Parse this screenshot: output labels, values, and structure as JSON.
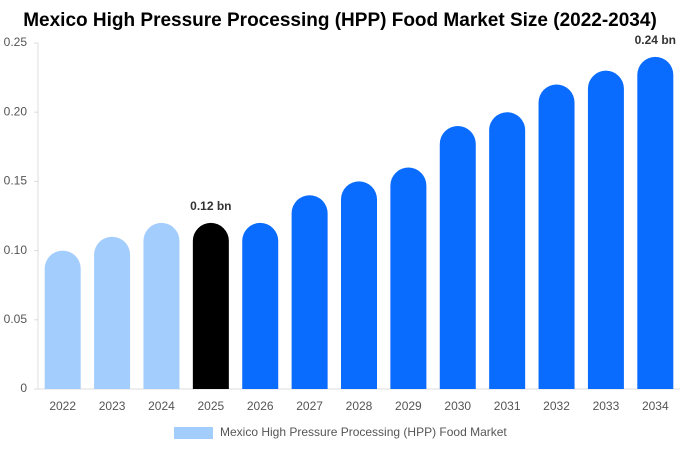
{
  "chart_data": {
    "type": "bar",
    "title": "Mexico High Pressure Processing (HPP) Food Market Size (2022-2034)",
    "categories": [
      "2022",
      "2023",
      "2024",
      "2025",
      "2026",
      "2027",
      "2028",
      "2029",
      "2030",
      "2031",
      "2032",
      "2033",
      "2034"
    ],
    "series": [
      {
        "name": "Mexico High Pressure Processing (HPP) Food Market",
        "color": "#a3cdfc",
        "values": [
          0.1,
          0.11,
          0.12,
          0.12,
          0.12,
          0.14,
          0.15,
          0.16,
          0.19,
          0.2,
          0.22,
          0.23,
          0.24
        ],
        "value_labels": [
          null,
          null,
          null,
          "0.12 bn",
          null,
          null,
          null,
          null,
          null,
          null,
          null,
          null,
          "0.24 bn"
        ],
        "colors": [
          "#a3cdfc",
          "#a3cdfc",
          "#a3cdfc",
          "#000000",
          "#0a6cff",
          "#0a6cff",
          "#0a6cff",
          "#0a6cff",
          "#0a6cff",
          "#0a6cff",
          "#0a6cff",
          "#0a6cff",
          "#0a6cff"
        ]
      }
    ],
    "ylim": [
      0,
      0.25
    ],
    "yticks": [
      0,
      0.05,
      {
        "value": 0.1,
        "label": "0.10"
      },
      0.15,
      {
        "value": 0.2,
        "label": "0.20"
      },
      0.25
    ],
    "grid": false
  }
}
